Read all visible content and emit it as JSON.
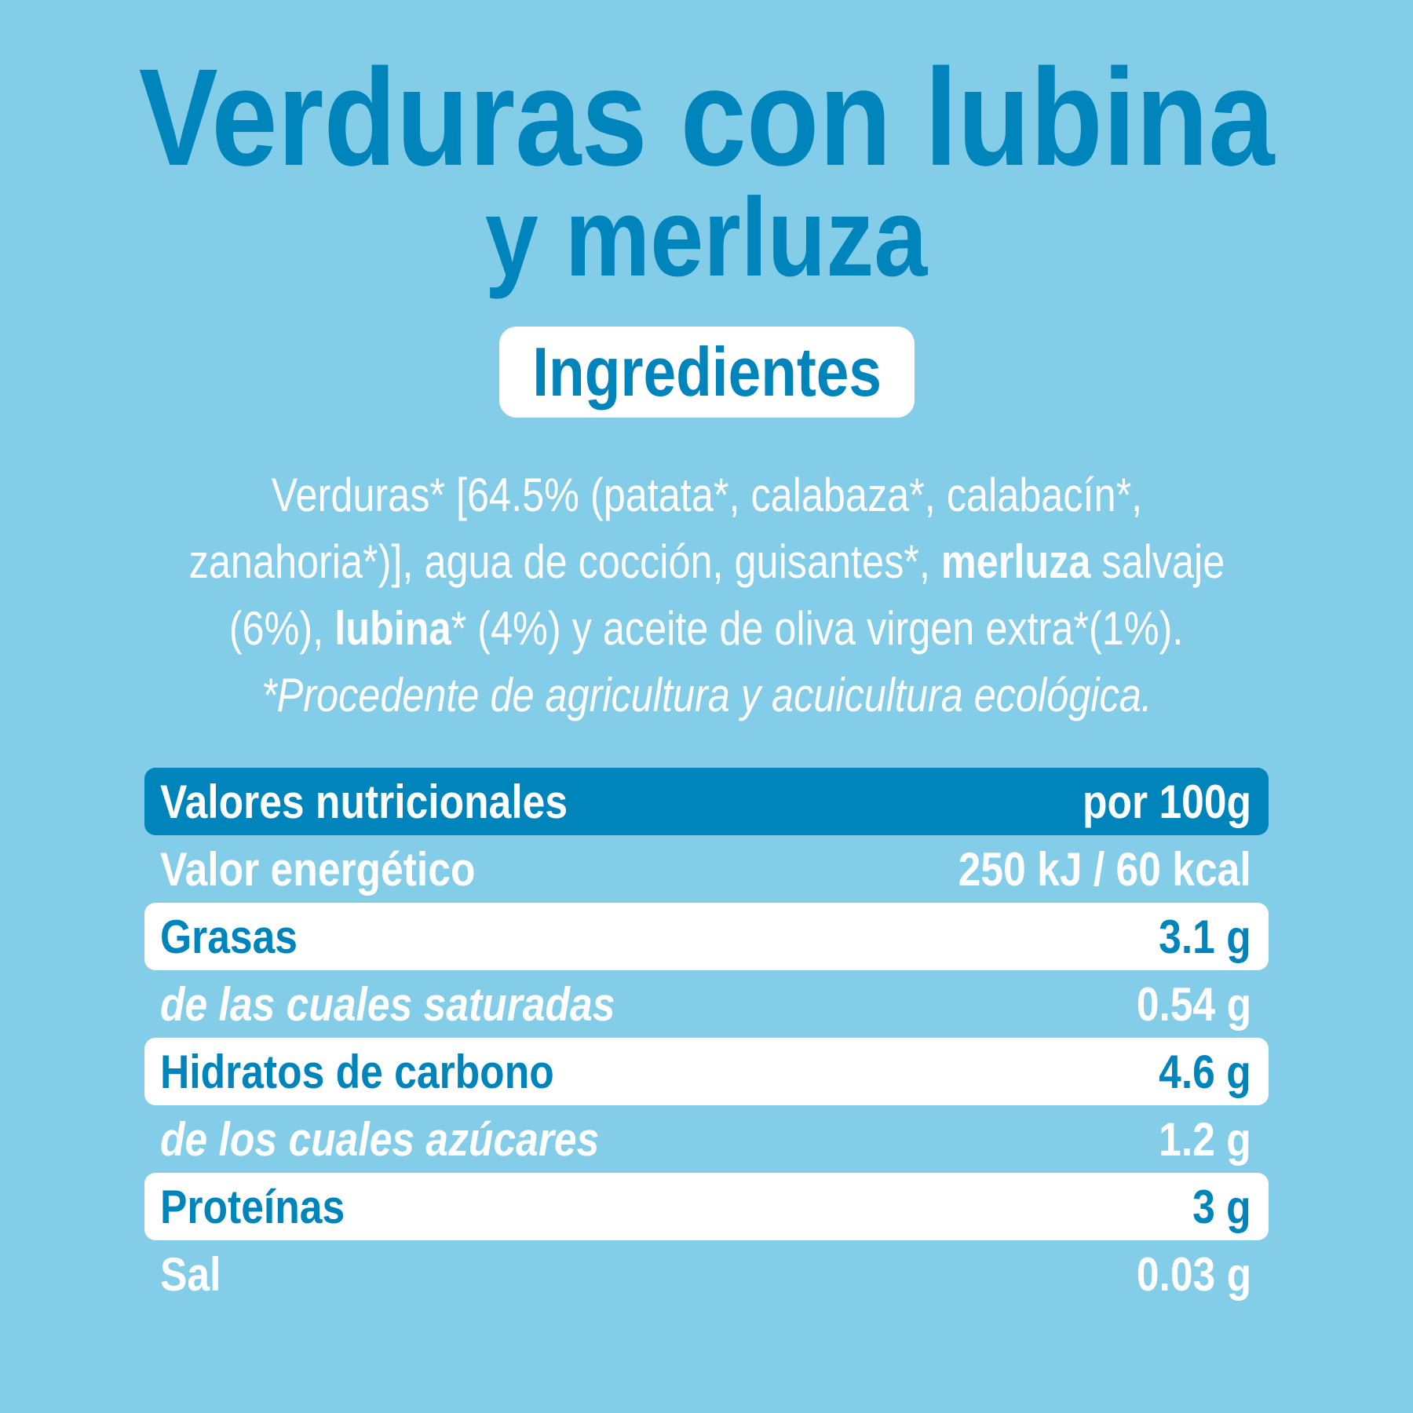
{
  "title": {
    "line1": "Verduras con lubina",
    "line2": "y merluza"
  },
  "ingredients_label": "Ingredientes",
  "ingredients": {
    "line1": "Verduras* [64.5% (patata*, calabaza*, calabacín*,",
    "line2_a": "zanahoria*)], agua de cocción, guisantes*, ",
    "line2_bold": "merluza",
    "line2_b": " salvaje",
    "line3_a": "(6%), ",
    "line3_bold": "lubina",
    "line3_b": "* (4%)  y aceite de oliva virgen extra*(1%).",
    "note": "*Procedente de agricultura y acuicultura ecológica."
  },
  "nutrition": {
    "header": {
      "label": "Valores nutricionales",
      "value": "por 100g"
    },
    "rows": [
      {
        "label": "Valor energético",
        "value": "250 kJ / 60 kcal"
      },
      {
        "label": "Grasas",
        "value": "3.1 g"
      },
      {
        "label": "de las cuales saturadas",
        "value": "0.54 g"
      },
      {
        "label": "Hidratos de carbono",
        "value": "4.6 g"
      },
      {
        "label": "de los cuales azúcares",
        "value": "1.2 g"
      },
      {
        "label": "Proteínas",
        "value": "3 g"
      },
      {
        "label": "Sal",
        "value": "0.03 g"
      }
    ]
  },
  "colors": {
    "background": "#84cde8",
    "accent": "#0084bc",
    "highlight": "#ffffff"
  }
}
